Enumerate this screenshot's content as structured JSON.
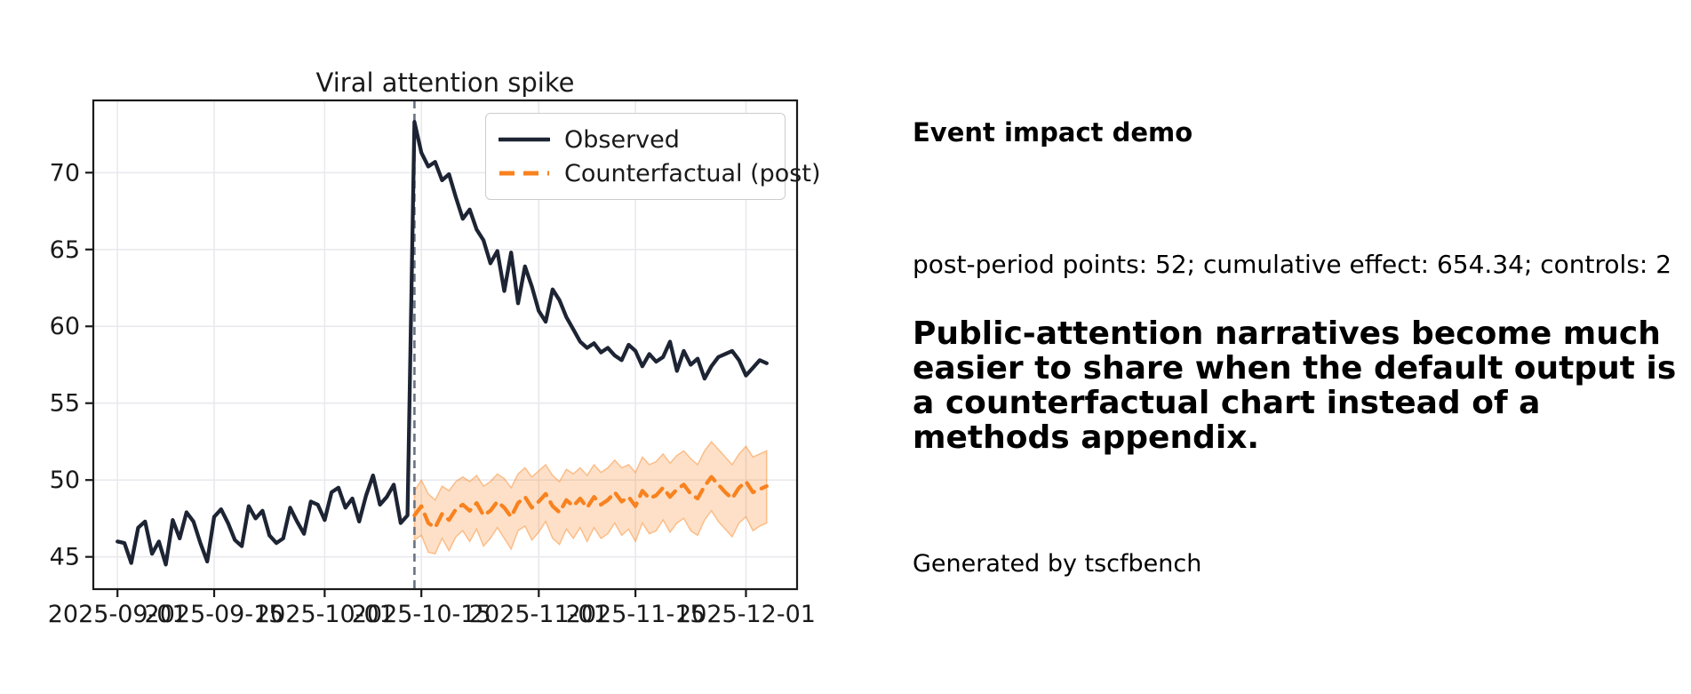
{
  "page": {
    "background": "#ffffff"
  },
  "right_panel": {
    "heading": "Event impact demo",
    "stats_line": "post-period points: 52; cumulative effect: 654.34; controls: 2",
    "summary_lines": [
      "Public-attention narratives become much",
      "easier to share when the default output is",
      "a counterfactual chart instead of a",
      "methods appendix."
    ],
    "footer": "Generated by tscfbench"
  },
  "chart_data": {
    "type": "line",
    "title": "Viral attention spike",
    "start_date": "2025-09-01",
    "event_date": "2025-10-14",
    "event_day_index": 43,
    "x_tick_labels": [
      "2025-09-01",
      "2025-09-15",
      "2025-10-01",
      "2025-10-15",
      "2025-11-01",
      "2025-11-15",
      "2025-12-01"
    ],
    "x_tick_day_index": [
      0,
      14,
      30,
      44,
      61,
      75,
      91
    ],
    "y_ticks": [
      45,
      50,
      55,
      60,
      65,
      70
    ],
    "xlim_days": [
      -3.5,
      98.4
    ],
    "ylim": [
      42.9,
      74.7
    ],
    "grid": true,
    "legend_position": "upper right",
    "colors": {
      "observed": "#1d2433",
      "counterfactual": "#f8821f",
      "band_fill": "#f8821f",
      "band_opacity": 0.25,
      "event_line": "#6a7380",
      "grid": "#e9e9ee",
      "spine": "#1a1a1a",
      "tick_text": "#1a1a1a"
    },
    "series": [
      {
        "name": "Observed",
        "style": "solid",
        "start_index": 0,
        "values": [
          46.0,
          45.9,
          44.6,
          46.9,
          47.3,
          45.2,
          46.0,
          44.5,
          47.4,
          46.2,
          47.9,
          47.3,
          45.9,
          44.7,
          47.6,
          48.1,
          47.2,
          46.1,
          45.7,
          48.3,
          47.5,
          48.0,
          46.4,
          45.9,
          46.2,
          48.2,
          47.3,
          46.5,
          48.6,
          48.4,
          47.4,
          49.2,
          49.5,
          48.2,
          48.8,
          47.3,
          49.0,
          50.3,
          48.4,
          48.9,
          49.7,
          47.2,
          47.7,
          73.3,
          71.3,
          70.4,
          70.7,
          69.5,
          69.9,
          68.4,
          67.0,
          67.6,
          66.3,
          65.6,
          64.1,
          64.9,
          62.3,
          64.8,
          61.5,
          63.9,
          62.6,
          61.0,
          60.3,
          62.4,
          61.7,
          60.6,
          59.8,
          59.0,
          58.6,
          58.9,
          58.3,
          58.6,
          58.1,
          57.8,
          58.8,
          58.4,
          57.4,
          58.2,
          57.7,
          58.0,
          59.0,
          57.1,
          58.4,
          57.5,
          57.9,
          56.6,
          57.4,
          58.0,
          58.2,
          58.4,
          57.8,
          56.8,
          57.3,
          57.8,
          57.6
        ]
      },
      {
        "name": "Counterfactual (post)",
        "style": "dashed",
        "start_index": 43,
        "values": [
          47.7,
          48.3,
          47.2,
          46.9,
          47.8,
          47.4,
          48.1,
          48.4,
          48.0,
          48.5,
          47.7,
          48.0,
          48.6,
          48.2,
          47.6,
          48.5,
          48.9,
          48.2,
          48.6,
          49.1,
          48.3,
          47.9,
          48.7,
          48.3,
          48.8,
          48.2,
          48.9,
          48.4,
          48.7,
          49.2,
          48.6,
          48.9,
          48.3,
          49.3,
          48.8,
          49.0,
          49.5,
          48.9,
          49.4,
          49.7,
          49.1,
          48.8,
          49.6,
          50.2,
          49.7,
          49.2,
          48.8,
          49.5,
          49.9,
          49.2,
          49.4,
          49.6
        ]
      }
    ],
    "band": {
      "start_index": 43,
      "lower": [
        46.1,
        46.4,
        45.3,
        45.2,
        46.2,
        45.4,
        46.3,
        46.7,
        46.0,
        46.8,
        45.7,
        46.2,
        46.9,
        46.2,
        45.5,
        46.7,
        47.0,
        46.1,
        46.6,
        47.3,
        46.2,
        45.8,
        46.8,
        46.2,
        46.9,
        46.0,
        46.9,
        46.2,
        46.5,
        47.2,
        46.4,
        46.8,
        46.0,
        47.2,
        46.5,
        46.7,
        47.4,
        46.6,
        47.2,
        47.5,
        46.7,
        46.4,
        47.4,
        48.0,
        47.3,
        46.8,
        46.3,
        47.2,
        47.6,
        46.7,
        47.0,
        47.2
      ],
      "upper": [
        49.3,
        50.0,
        49.1,
        48.7,
        49.6,
        49.3,
        49.9,
        50.2,
        49.9,
        50.3,
        49.6,
        49.9,
        50.4,
        50.1,
        49.5,
        50.4,
        50.8,
        50.2,
        50.6,
        51.0,
        50.3,
        49.9,
        50.7,
        50.4,
        50.8,
        50.3,
        51.0,
        50.5,
        50.8,
        51.3,
        50.8,
        51.0,
        50.5,
        51.5,
        51.0,
        51.2,
        51.7,
        51.1,
        51.6,
        51.9,
        51.4,
        51.0,
        51.9,
        52.5,
        52.0,
        51.5,
        51.0,
        51.7,
        52.2,
        51.5,
        51.7,
        51.9
      ]
    }
  }
}
